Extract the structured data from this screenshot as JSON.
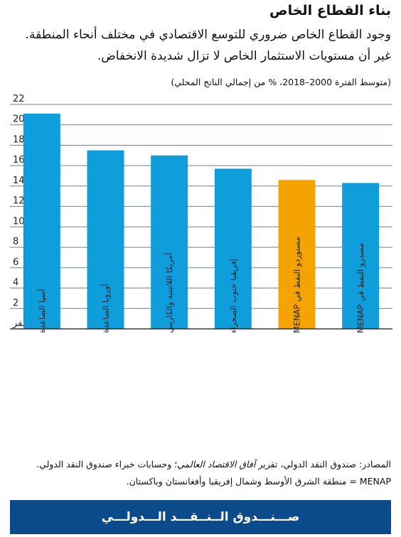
{
  "header": {
    "title": "بناء القطاع الخاص",
    "subtitle": "وجود القطاع الخاص ضروري للتوسع الاقتصادي في مختلف أنحاء المنطقة. غير أن مستويات الاستثمار الخاص لا تزال شديدة الانخفاض.",
    "unit_note": "(متوسط الفترة 2000–2018، % من إجمالي الناتج المحلي)"
  },
  "chart_data": {
    "type": "bar",
    "categories": [
      "آسيا الصاعدة",
      "أوروبا الصاعدة",
      "أمريكا اللاتينية والكاريبي",
      "إفريقيا جنوب الصحراء",
      "مستوردو النفط في MENAP",
      "مصدرو النفط في MENAP"
    ],
    "values": [
      21.1,
      17.5,
      17.0,
      15.7,
      14.6,
      14.3
    ],
    "highlight_index": 4,
    "ylim": [
      0,
      22
    ],
    "yticks": [
      0,
      2,
      4,
      6,
      8,
      10,
      12,
      14,
      16,
      18,
      20,
      22
    ],
    "ytick_labels": [
      "صفر",
      "2",
      "4",
      "6",
      "8",
      "10",
      "12",
      "14",
      "16",
      "18",
      "20",
      "22"
    ],
    "grid": true,
    "legend": "none",
    "colors": {
      "bar": "#0f9ddb",
      "highlight": "#f4a300",
      "grid": "#6f7f8f",
      "axis": "#111111"
    }
  },
  "sources": {
    "line1_start": "المصادر: صندوق النقد الدولي، تقرير ",
    "line1_italic": "آفاق الاقتصاد العالمي",
    "line1_end": "؛ وحسابات خبراء صندوق النقد الدولي.",
    "line2": "MENAP = منطقة الشرق الأوسط وشمال إفريقيا وأفغانستان وباكستان."
  },
  "footer": {
    "brand": "صـــنـــدوق الــنــقـــد الـــدولـــي"
  },
  "colors": {
    "brand_blue": "#0b4a8b"
  }
}
